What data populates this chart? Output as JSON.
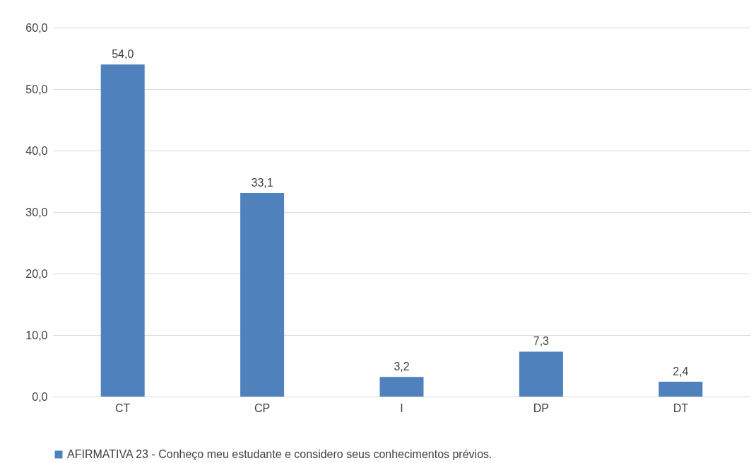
{
  "chart_data": {
    "type": "bar",
    "categories": [
      "CT",
      "CP",
      "I",
      "DP",
      "DT"
    ],
    "series": [
      {
        "name": "AFIRMATIVA 23 - Conheço meu estudante e considero seus conhecimentos prévios.",
        "color": "#4f81bd",
        "values": [
          54.0,
          33.1,
          3.2,
          7.3,
          2.4
        ],
        "value_labels": [
          "54,0",
          "33,1",
          "3,2",
          "7,3",
          "2,4"
        ]
      }
    ],
    "ylim": [
      0,
      60
    ],
    "yticks": [
      {
        "value": 0,
        "label": "0,0"
      },
      {
        "value": 10,
        "label": "10,0"
      },
      {
        "value": 20,
        "label": "20,0"
      },
      {
        "value": 30,
        "label": "30,0"
      },
      {
        "value": 40,
        "label": "40,0"
      },
      {
        "value": 50,
        "label": "50,0"
      },
      {
        "value": 60,
        "label": "60,0"
      }
    ],
    "grid": "y",
    "legend": "bottom"
  }
}
